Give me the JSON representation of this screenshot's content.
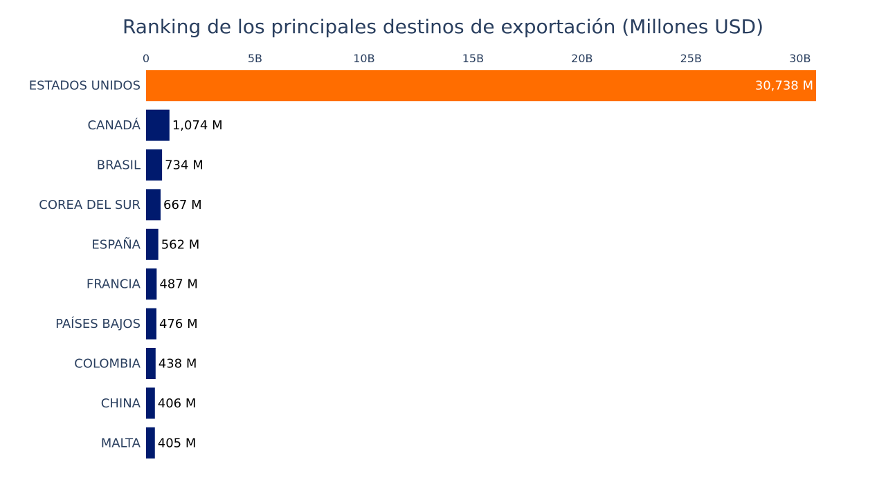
{
  "chart_data": {
    "type": "bar",
    "orientation": "horizontal",
    "title": "Ranking de los principales destinos de exportación (Millones USD)",
    "xlabel": "",
    "ylabel": "",
    "xlim": [
      0,
      30738
    ],
    "x_ticks": [
      0,
      5000,
      10000,
      15000,
      20000,
      25000,
      30000
    ],
    "x_tick_labels": [
      "0",
      "5B",
      "10B",
      "15B",
      "20B",
      "25B",
      "30B"
    ],
    "x_axis_position": "top",
    "grid": false,
    "categories": [
      "ESTADOS UNIDOS",
      "CANADÁ",
      "BRASIL",
      "COREA DEL SUR",
      "ESPAÑA",
      "FRANCIA",
      "PAÍSES BAJOS",
      "COLOMBIA",
      "CHINA",
      "MALTA"
    ],
    "values": [
      30738,
      1074,
      734,
      667,
      562,
      487,
      476,
      438,
      406,
      405
    ],
    "value_labels": [
      "30,738 M",
      "1,074 M",
      "734 M",
      "667 M",
      "562 M",
      "487 M",
      "476 M",
      "438 M",
      "406 M",
      "405 M"
    ],
    "bar_colors": [
      "#ff6d00",
      "#001a6e",
      "#001a6e",
      "#001a6e",
      "#001a6e",
      "#001a6e",
      "#001a6e",
      "#001a6e",
      "#001a6e",
      "#001a6e"
    ],
    "highlight_color": "#ff6d00",
    "base_color": "#001a6e"
  }
}
